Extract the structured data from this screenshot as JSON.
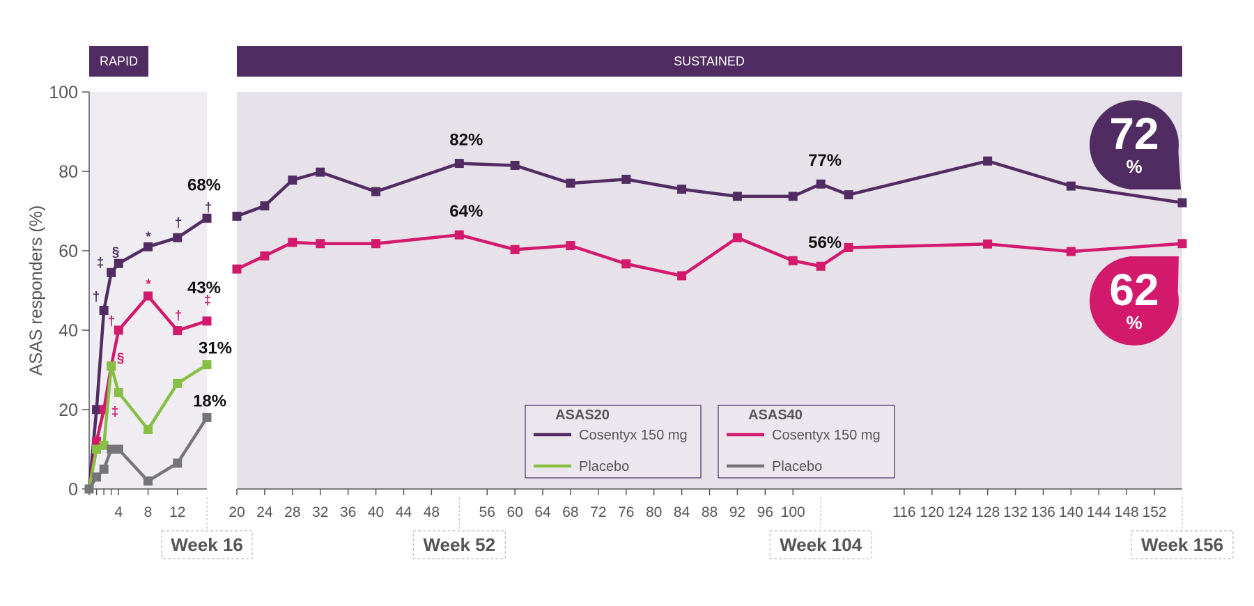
{
  "colors": {
    "purple_dark": "#512c62",
    "magenta": "#d3196b",
    "green": "#86bf44",
    "gray": "#757578",
    "panel_rapid": "#f0edf2",
    "panel_sustained": "#e7e2e9",
    "axis": "#555555"
  },
  "chart_data": {
    "type": "line",
    "title": "",
    "ylabel": "ASAS responders (%)",
    "xlabel": "",
    "ylim": [
      0,
      100
    ],
    "yticks": [
      0,
      20,
      40,
      60,
      80,
      100
    ],
    "xticks": [
      4,
      8,
      12,
      20,
      24,
      28,
      32,
      36,
      40,
      44,
      48,
      56,
      60,
      64,
      68,
      72,
      76,
      80,
      84,
      88,
      92,
      96,
      100,
      116,
      120,
      124,
      128,
      132,
      136,
      140,
      144,
      148,
      152
    ],
    "milestones": [
      "Week 16",
      "Week 52",
      "Week 104",
      "Week 156"
    ],
    "phases": {
      "rapid": "RAPID",
      "sustained": "SUSTAINED"
    },
    "series": [
      {
        "group": "ASAS20",
        "name": "Cosentyx 150 mg",
        "color": "#512c62",
        "x": [
          0,
          1,
          2,
          3,
          4,
          8,
          12,
          16,
          20,
          24,
          28,
          32,
          40,
          52,
          60,
          68,
          76,
          84,
          92,
          100,
          104,
          108,
          128,
          140,
          156
        ],
        "y": [
          0,
          20,
          45,
          54.5,
          56.8,
          61,
          63.3,
          68.2,
          68.7,
          71.3,
          77.8,
          79.8,
          74.9,
          82,
          81.5,
          77,
          78,
          75.5,
          73.7,
          73.7,
          76.8,
          74.1,
          82.6,
          76.3,
          72.1
        ]
      },
      {
        "group": "ASAS40",
        "name": "Cosentyx 150 mg",
        "color": "#d3196b",
        "x": [
          0,
          1,
          2,
          3,
          4,
          8,
          12,
          16,
          20,
          24,
          28,
          32,
          40,
          52,
          60,
          68,
          76,
          84,
          92,
          100,
          104,
          108,
          128,
          140,
          156
        ],
        "y": [
          0,
          12,
          20,
          31,
          40,
          48.6,
          39.9,
          42.3,
          55.4,
          58.7,
          62.1,
          61.8,
          61.8,
          64,
          60.3,
          61.3,
          56.7,
          53.7,
          63.3,
          57.5,
          56.1,
          60.8,
          61.7,
          59.8,
          61.8
        ]
      },
      {
        "group": "ASAS20",
        "name": "Placebo",
        "color": "#86bf44",
        "x": [
          0,
          1,
          2,
          3,
          4,
          8,
          12,
          16
        ],
        "y": [
          0,
          10,
          11,
          31,
          24.3,
          15,
          26.6,
          31.3
        ]
      },
      {
        "group": "ASAS40",
        "name": "Placebo",
        "color": "#757578",
        "x": [
          0,
          1,
          2,
          3,
          4,
          8,
          12,
          16
        ],
        "y": [
          0,
          3,
          5,
          10,
          10,
          2,
          6.5,
          18
        ]
      }
    ],
    "data_labels": [
      {
        "text": "68%",
        "x": 16,
        "y": 68.2
      },
      {
        "text": "43%",
        "x": 16,
        "y": 42.3
      },
      {
        "text": "31%",
        "x": 16,
        "y": 31.3
      },
      {
        "text": "18%",
        "x": 16,
        "y": 18
      },
      {
        "text": "82%",
        "x": 52,
        "y": 82
      },
      {
        "text": "64%",
        "x": 52,
        "y": 64
      },
      {
        "text": "77%",
        "x": 104,
        "y": 76.8
      },
      {
        "text": "56%",
        "x": 104,
        "y": 56.1
      }
    ],
    "significance_markers": [
      {
        "symbol": "‡",
        "series": 0,
        "x": 1
      },
      {
        "symbol": "†",
        "series": 0,
        "x": 2
      },
      {
        "symbol": "§",
        "series": 0,
        "x": 4
      },
      {
        "symbol": "*",
        "series": 0,
        "x": 8
      },
      {
        "symbol": "†",
        "series": 0,
        "x": 12
      },
      {
        "symbol": "†",
        "series": 0,
        "x": 16
      },
      {
        "symbol": "†",
        "series": 1,
        "x": 3
      },
      {
        "symbol": "§",
        "series": 1,
        "x": 4
      },
      {
        "symbol": "*",
        "series": 1,
        "x": 8
      },
      {
        "symbol": "†",
        "series": 1,
        "x": 12
      },
      {
        "symbol": "‡",
        "series": 1,
        "x": 16
      },
      {
        "symbol": "‡",
        "series": 1,
        "x": 3
      }
    ],
    "callouts": [
      {
        "value": "72",
        "unit": "%",
        "series": 0
      },
      {
        "value": "62",
        "unit": "%",
        "series": 1
      }
    ],
    "legend": {
      "placement": "bottom-center",
      "groups": [
        {
          "title": "ASAS20",
          "entries": [
            {
              "label": "Cosentyx 150 mg",
              "series": 0
            },
            {
              "label": "Placebo",
              "series": 2
            }
          ]
        },
        {
          "title": "ASAS40",
          "entries": [
            {
              "label": "Cosentyx 150 mg",
              "series": 1
            },
            {
              "label": "Placebo",
              "series": 3
            }
          ]
        }
      ]
    },
    "grid": false
  }
}
